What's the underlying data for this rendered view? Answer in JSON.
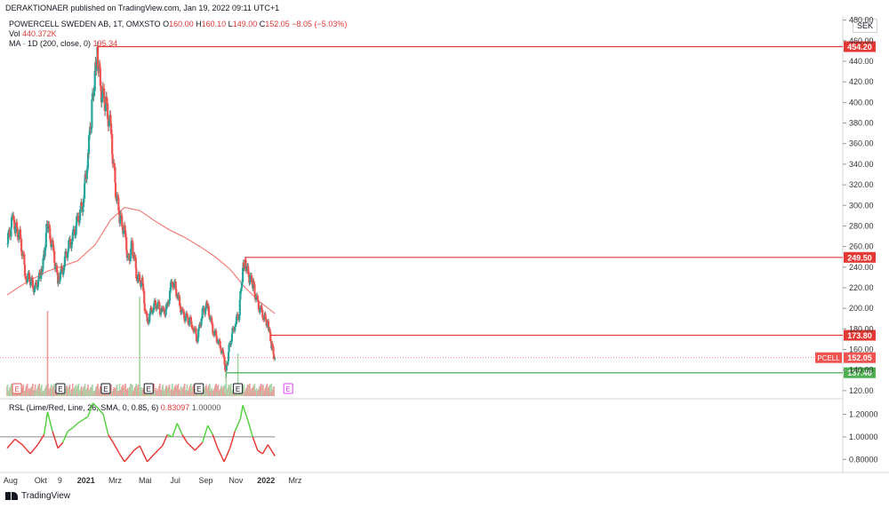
{
  "publisher_line": "DERAKTIONAER published on TradingView.com, Jan 19, 2022 09:11 UTC+1",
  "legend": {
    "symbol": "POWERCELL SWEDEN AB, 1T, OMXSTO",
    "o_label": "O",
    "o_value": "160.00",
    "h_label": "H",
    "h_value": "160.10",
    "l_label": "L",
    "l_value": "149.00",
    "c_label": "C",
    "c_value": "152.05",
    "change": "−8.05 (−5.03%)",
    "vol_label": "Vol",
    "vol_value": "440.372K",
    "ma_label": "MA · 1D (200, close, 0)",
    "ma_value": "195.34"
  },
  "rsl_legend": {
    "label": "RSL (Lime/Red, Line, 26, SMA, 0, 0.85, 6)",
    "value1": "0.83097",
    "value2": "1.00000"
  },
  "currency": "SEK",
  "footer": "TradingView",
  "colors": {
    "up": "#26a69a",
    "down": "#ef5350",
    "ma": "#f0736e",
    "level": "#e53935",
    "support": "#4caf50",
    "rsl_up": "#4cd137",
    "rsl_down": "#e8312f",
    "event_e": "#e040fb"
  },
  "chart_data": [
    {
      "type": "candlestick",
      "title": "POWERCELL SWEDEN AB, 1T, OMXSTO",
      "x_ticks": [
        "Aug",
        "Okt",
        "9",
        "2021",
        "Mrz",
        "Mai",
        "Jul",
        "Sep",
        "Nov",
        "2022",
        "Mrz"
      ],
      "y_ticks": [
        120,
        140,
        160,
        180,
        200,
        220,
        240,
        260,
        280,
        300,
        320,
        340,
        360,
        380,
        400,
        420,
        440,
        460,
        480
      ],
      "ylim": [
        113,
        484
      ],
      "close_series": [
        {
          "date": "2020-07-25",
          "close": 262
        },
        {
          "date": "2020-08-05",
          "close": 285
        },
        {
          "date": "2020-08-20",
          "close": 270
        },
        {
          "date": "2020-09-01",
          "close": 232
        },
        {
          "date": "2020-09-10",
          "close": 228
        },
        {
          "date": "2020-09-20",
          "close": 218
        },
        {
          "date": "2020-10-01",
          "close": 233
        },
        {
          "date": "2020-10-08",
          "close": 250
        },
        {
          "date": "2020-10-15",
          "close": 282
        },
        {
          "date": "2020-10-25",
          "close": 260
        },
        {
          "date": "2020-11-05",
          "close": 228
        },
        {
          "date": "2020-11-15",
          "close": 238
        },
        {
          "date": "2020-11-25",
          "close": 258
        },
        {
          "date": "2020-12-05",
          "close": 268
        },
        {
          "date": "2020-12-15",
          "close": 285
        },
        {
          "date": "2020-12-25",
          "close": 300
        },
        {
          "date": "2021-01-05",
          "close": 345
        },
        {
          "date": "2021-01-12",
          "close": 385
        },
        {
          "date": "2021-01-19",
          "close": 430
        },
        {
          "date": "2021-01-24",
          "close": 450
        },
        {
          "date": "2021-02-01",
          "close": 410
        },
        {
          "date": "2021-02-10",
          "close": 400
        },
        {
          "date": "2021-02-20",
          "close": 375
        },
        {
          "date": "2021-03-01",
          "close": 320
        },
        {
          "date": "2021-03-10",
          "close": 290
        },
        {
          "date": "2021-03-20",
          "close": 275
        },
        {
          "date": "2021-03-28",
          "close": 245
        },
        {
          "date": "2021-04-05",
          "close": 262
        },
        {
          "date": "2021-04-15",
          "close": 230
        },
        {
          "date": "2021-04-25",
          "close": 225
        },
        {
          "date": "2021-05-05",
          "close": 185
        },
        {
          "date": "2021-05-15",
          "close": 200
        },
        {
          "date": "2021-05-25",
          "close": 205
        },
        {
          "date": "2021-06-05",
          "close": 195
        },
        {
          "date": "2021-06-15",
          "close": 200
        },
        {
          "date": "2021-06-25",
          "close": 228
        },
        {
          "date": "2021-07-05",
          "close": 215
        },
        {
          "date": "2021-07-15",
          "close": 195
        },
        {
          "date": "2021-07-25",
          "close": 190
        },
        {
          "date": "2021-08-05",
          "close": 185
        },
        {
          "date": "2021-08-15",
          "close": 170
        },
        {
          "date": "2021-08-25",
          "close": 195
        },
        {
          "date": "2021-09-05",
          "close": 203
        },
        {
          "date": "2021-09-15",
          "close": 180
        },
        {
          "date": "2021-09-25",
          "close": 170
        },
        {
          "date": "2021-10-05",
          "close": 157
        },
        {
          "date": "2021-10-12",
          "close": 140
        },
        {
          "date": "2021-10-20",
          "close": 165
        },
        {
          "date": "2021-10-30",
          "close": 185
        },
        {
          "date": "2021-11-08",
          "close": 195
        },
        {
          "date": "2021-11-15",
          "close": 240
        },
        {
          "date": "2021-11-20",
          "close": 246
        },
        {
          "date": "2021-11-28",
          "close": 230
        },
        {
          "date": "2021-12-05",
          "close": 225
        },
        {
          "date": "2021-12-15",
          "close": 205
        },
        {
          "date": "2021-12-25",
          "close": 195
        },
        {
          "date": "2022-01-05",
          "close": 185
        },
        {
          "date": "2022-01-12",
          "close": 165
        },
        {
          "date": "2022-01-19",
          "close": 152
        }
      ],
      "ma200_series": [
        {
          "date": "2020-07-25",
          "value": 213
        },
        {
          "date": "2020-09-01",
          "value": 225
        },
        {
          "date": "2020-10-15",
          "value": 236
        },
        {
          "date": "2020-12-15",
          "value": 246
        },
        {
          "date": "2021-01-20",
          "value": 262
        },
        {
          "date": "2021-02-20",
          "value": 286
        },
        {
          "date": "2021-03-20",
          "value": 298
        },
        {
          "date": "2021-04-20",
          "value": 295
        },
        {
          "date": "2021-05-20",
          "value": 285
        },
        {
          "date": "2021-06-20",
          "value": 276
        },
        {
          "date": "2021-07-20",
          "value": 269
        },
        {
          "date": "2021-08-20",
          "value": 260
        },
        {
          "date": "2021-09-20",
          "value": 250
        },
        {
          "date": "2021-10-20",
          "value": 238
        },
        {
          "date": "2021-11-20",
          "value": 220
        },
        {
          "date": "2021-12-20",
          "value": 206
        },
        {
          "date": "2022-01-19",
          "value": 195
        }
      ],
      "horizontal_levels": [
        {
          "label": "454.20",
          "value": 454.2,
          "from": "2021-01-24",
          "color": "#e53935"
        },
        {
          "label": "249.50",
          "value": 249.5,
          "from": "2021-11-20",
          "color": "#e53935"
        },
        {
          "label": "173.80",
          "value": 173.8,
          "from": "2022-01-10",
          "color": "#e53935"
        },
        {
          "label": "137.40",
          "value": 137.4,
          "from": "2021-10-12",
          "color": "#4caf50"
        }
      ],
      "last_price": {
        "symbol": "PCELL",
        "label": "152.05",
        "value": 152.05
      },
      "events": [
        {
          "date": "2020-08-14",
          "label": "E",
          "color": "#ef5350"
        },
        {
          "date": "2020-11-10",
          "label": "E",
          "color": "#131722"
        },
        {
          "date": "2021-02-10",
          "label": "E",
          "color": "#131722"
        },
        {
          "date": "2021-05-08",
          "label": "E",
          "color": "#131722"
        },
        {
          "date": "2021-08-18",
          "label": "E",
          "color": "#131722"
        },
        {
          "date": "2021-11-05",
          "label": "E",
          "color": "#131722"
        },
        {
          "date": "2022-02-15",
          "label": "E",
          "color": "#e040fb"
        }
      ],
      "volume_spikes": [
        {
          "date": "2020-10-15",
          "value": 6
        },
        {
          "date": "2021-04-20",
          "value": 7
        },
        {
          "date": "2021-11-05",
          "value": 3
        },
        {
          "date": "2021-10-12",
          "value": 2.5
        }
      ]
    },
    {
      "type": "line",
      "title": "RSL (Lime/Red, Line, 26, SMA, 0, 0.85, 6)",
      "y_ticks": [
        0.8,
        1.0,
        1.2
      ],
      "y_tick_labels": [
        "0.80000",
        "1.00000",
        "1.20000"
      ],
      "ylim": [
        0.7,
        1.33
      ],
      "reference_line": 1.0,
      "series": [
        {
          "date": "2020-07-25",
          "value": 0.9
        },
        {
          "date": "2020-08-10",
          "value": 0.98
        },
        {
          "date": "2020-08-25",
          "value": 0.93
        },
        {
          "date": "2020-09-10",
          "value": 0.85
        },
        {
          "date": "2020-09-25",
          "value": 0.93
        },
        {
          "date": "2020-10-08",
          "value": 1.02
        },
        {
          "date": "2020-10-15",
          "value": 1.22
        },
        {
          "date": "2020-10-25",
          "value": 1.05
        },
        {
          "date": "2020-11-05",
          "value": 0.9
        },
        {
          "date": "2020-11-15",
          "value": 0.95
        },
        {
          "date": "2020-11-25",
          "value": 1.05
        },
        {
          "date": "2020-12-05",
          "value": 1.08
        },
        {
          "date": "2020-12-15",
          "value": 1.12
        },
        {
          "date": "2021-01-05",
          "value": 1.18
        },
        {
          "date": "2021-01-15",
          "value": 1.3
        },
        {
          "date": "2021-01-24",
          "value": 1.26
        },
        {
          "date": "2021-02-05",
          "value": 1.2
        },
        {
          "date": "2021-02-15",
          "value": 1.02
        },
        {
          "date": "2021-02-25",
          "value": 0.95
        },
        {
          "date": "2021-03-10",
          "value": 0.85
        },
        {
          "date": "2021-03-20",
          "value": 0.78
        },
        {
          "date": "2021-03-28",
          "value": 0.82
        },
        {
          "date": "2021-04-08",
          "value": 0.88
        },
        {
          "date": "2021-04-20",
          "value": 0.92
        },
        {
          "date": "2021-05-05",
          "value": 0.78
        },
        {
          "date": "2021-05-20",
          "value": 0.85
        },
        {
          "date": "2021-06-05",
          "value": 0.92
        },
        {
          "date": "2021-06-15",
          "value": 1.02
        },
        {
          "date": "2021-06-25",
          "value": 1.0
        },
        {
          "date": "2021-07-05",
          "value": 1.12
        },
        {
          "date": "2021-07-15",
          "value": 1.02
        },
        {
          "date": "2021-07-25",
          "value": 0.95
        },
        {
          "date": "2021-08-10",
          "value": 0.88
        },
        {
          "date": "2021-08-25",
          "value": 0.95
        },
        {
          "date": "2021-09-05",
          "value": 1.1
        },
        {
          "date": "2021-09-15",
          "value": 1.02
        },
        {
          "date": "2021-09-25",
          "value": 0.9
        },
        {
          "date": "2021-10-08",
          "value": 0.78
        },
        {
          "date": "2021-10-20",
          "value": 0.9
        },
        {
          "date": "2021-10-30",
          "value": 1.05
        },
        {
          "date": "2021-11-10",
          "value": 1.16
        },
        {
          "date": "2021-11-15",
          "value": 1.28
        },
        {
          "date": "2021-11-25",
          "value": 1.15
        },
        {
          "date": "2021-12-05",
          "value": 1.0
        },
        {
          "date": "2021-12-15",
          "value": 0.88
        },
        {
          "date": "2021-12-25",
          "value": 0.85
        },
        {
          "date": "2022-01-05",
          "value": 0.93
        },
        {
          "date": "2022-01-19",
          "value": 0.83
        }
      ]
    }
  ]
}
